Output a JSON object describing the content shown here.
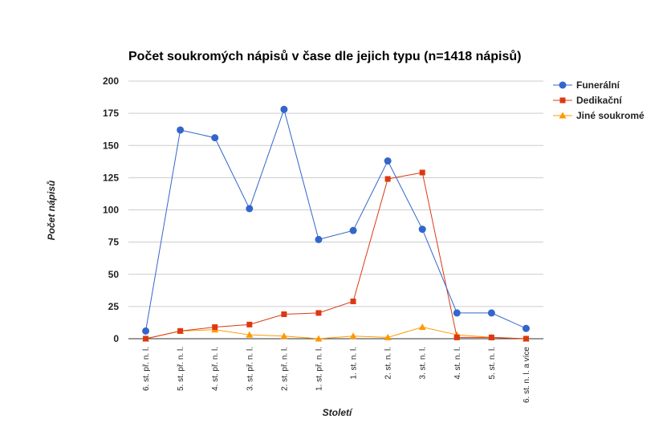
{
  "chart_data": {
    "type": "line",
    "title": "Počet soukromých nápisů v čase dle jejich typu (n=1418 nápisů)",
    "xlabel": "Století",
    "ylabel": "Počet nápisů",
    "ylim": [
      0,
      200
    ],
    "yticks": [
      0,
      25,
      50,
      75,
      100,
      125,
      150,
      175,
      200
    ],
    "grid": true,
    "legend_position": "right",
    "categories": [
      "6. st. př. n. l.",
      "5. st. př. n. l.",
      "4. st. př. n. l.",
      "3. st. př. n. l.",
      "2. st. př. n. l.",
      "1. st. př. n. l.",
      "1. st. n. l.",
      "2. st. n. l.",
      "3. st. n. l.",
      "4. st. n. l.",
      "5. st. n. l.",
      "6. st. n. l. a více"
    ],
    "series": [
      {
        "name": "Funerální",
        "color": "#3366cc",
        "marker": "circle",
        "values": [
          6,
          162,
          156,
          101,
          178,
          77,
          84,
          138,
          85,
          20,
          20,
          8
        ]
      },
      {
        "name": "Dedikační",
        "color": "#dc3912",
        "marker": "square",
        "values": [
          0,
          6,
          9,
          11,
          19,
          20,
          29,
          124,
          129,
          1,
          1,
          0
        ]
      },
      {
        "name": "Jiné soukromé",
        "color": "#ff9900",
        "marker": "triangle",
        "values": [
          0,
          6,
          7,
          3,
          2,
          0,
          2,
          1,
          9,
          3,
          1,
          0
        ]
      }
    ]
  }
}
